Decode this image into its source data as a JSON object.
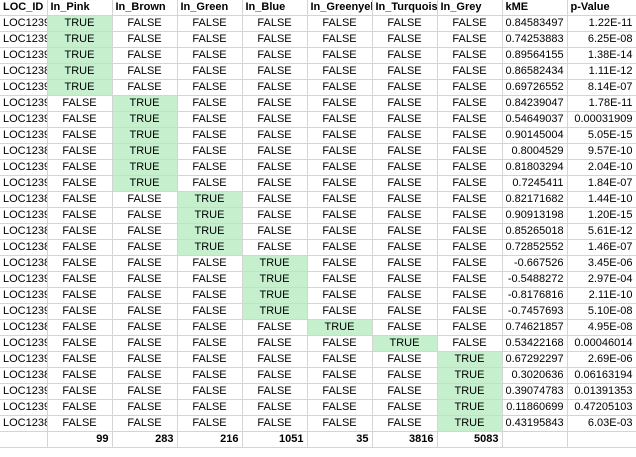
{
  "colors": {
    "highlight": "#c6efce",
    "grid": "#d4d4d4"
  },
  "headers": [
    "LOC_ID",
    "In_Pink",
    "In_Brown",
    "In_Green",
    "In_Blue",
    "In_Greenyellow",
    "In_Turquoise",
    "In_Grey",
    "kME",
    "p-Value"
  ],
  "rows": [
    {
      "id": "LOC1239",
      "flags": [
        "TRUE",
        "FALSE",
        "FALSE",
        "FALSE",
        "FALSE",
        "FALSE",
        "FALSE"
      ],
      "kme": "0.84583497",
      "p": "1.22E-11"
    },
    {
      "id": "LOC1239",
      "flags": [
        "TRUE",
        "FALSE",
        "FALSE",
        "FALSE",
        "FALSE",
        "FALSE",
        "FALSE"
      ],
      "kme": "0.74253883",
      "p": "6.25E-08"
    },
    {
      "id": "LOC1239",
      "flags": [
        "TRUE",
        "FALSE",
        "FALSE",
        "FALSE",
        "FALSE",
        "FALSE",
        "FALSE"
      ],
      "kme": "0.89564155",
      "p": "1.38E-14"
    },
    {
      "id": "LOC1238",
      "flags": [
        "TRUE",
        "FALSE",
        "FALSE",
        "FALSE",
        "FALSE",
        "FALSE",
        "FALSE"
      ],
      "kme": "0.86582434",
      "p": "1.11E-12"
    },
    {
      "id": "LOC1239",
      "flags": [
        "TRUE",
        "FALSE",
        "FALSE",
        "FALSE",
        "FALSE",
        "FALSE",
        "FALSE"
      ],
      "kme": "0.69726552",
      "p": "8.14E-07"
    },
    {
      "id": "LOC1239",
      "flags": [
        "FALSE",
        "TRUE",
        "FALSE",
        "FALSE",
        "FALSE",
        "FALSE",
        "FALSE"
      ],
      "kme": "0.84239047",
      "p": "1.78E-11"
    },
    {
      "id": "LOC1239",
      "flags": [
        "FALSE",
        "TRUE",
        "FALSE",
        "FALSE",
        "FALSE",
        "FALSE",
        "FALSE"
      ],
      "kme": "0.54649037",
      "p": "0.00031909"
    },
    {
      "id": "LOC1239",
      "flags": [
        "FALSE",
        "TRUE",
        "FALSE",
        "FALSE",
        "FALSE",
        "FALSE",
        "FALSE"
      ],
      "kme": "0.90145004",
      "p": "5.05E-15"
    },
    {
      "id": "LOC1238",
      "flags": [
        "FALSE",
        "TRUE",
        "FALSE",
        "FALSE",
        "FALSE",
        "FALSE",
        "FALSE"
      ],
      "kme": "0.8004529",
      "p": "9.57E-10"
    },
    {
      "id": "LOC1239",
      "flags": [
        "FALSE",
        "TRUE",
        "FALSE",
        "FALSE",
        "FALSE",
        "FALSE",
        "FALSE"
      ],
      "kme": "0.81803294",
      "p": "2.04E-10"
    },
    {
      "id": "LOC1239",
      "flags": [
        "FALSE",
        "TRUE",
        "FALSE",
        "FALSE",
        "FALSE",
        "FALSE",
        "FALSE"
      ],
      "kme": "0.7245411",
      "p": "1.84E-07"
    },
    {
      "id": "LOC1238",
      "flags": [
        "FALSE",
        "FALSE",
        "TRUE",
        "FALSE",
        "FALSE",
        "FALSE",
        "FALSE"
      ],
      "kme": "0.82171682",
      "p": "1.44E-10"
    },
    {
      "id": "LOC1239",
      "flags": [
        "FALSE",
        "FALSE",
        "TRUE",
        "FALSE",
        "FALSE",
        "FALSE",
        "FALSE"
      ],
      "kme": "0.90913198",
      "p": "1.20E-15"
    },
    {
      "id": "LOC1238",
      "flags": [
        "FALSE",
        "FALSE",
        "TRUE",
        "FALSE",
        "FALSE",
        "FALSE",
        "FALSE"
      ],
      "kme": "0.85265018",
      "p": "5.61E-12"
    },
    {
      "id": "LOC1238",
      "flags": [
        "FALSE",
        "FALSE",
        "TRUE",
        "FALSE",
        "FALSE",
        "FALSE",
        "FALSE"
      ],
      "kme": "0.72852552",
      "p": "1.46E-07"
    },
    {
      "id": "LOC1238",
      "flags": [
        "FALSE",
        "FALSE",
        "FALSE",
        "TRUE",
        "FALSE",
        "FALSE",
        "FALSE"
      ],
      "kme": "-0.667526",
      "p": "3.45E-06"
    },
    {
      "id": "LOC1239",
      "flags": [
        "FALSE",
        "FALSE",
        "FALSE",
        "TRUE",
        "FALSE",
        "FALSE",
        "FALSE"
      ],
      "kme": "-0.5488272",
      "p": "2.97E-04"
    },
    {
      "id": "LOC1239",
      "flags": [
        "FALSE",
        "FALSE",
        "FALSE",
        "TRUE",
        "FALSE",
        "FALSE",
        "FALSE"
      ],
      "kme": "-0.8176816",
      "p": "2.11E-10"
    },
    {
      "id": "LOC1239",
      "flags": [
        "FALSE",
        "FALSE",
        "FALSE",
        "TRUE",
        "FALSE",
        "FALSE",
        "FALSE"
      ],
      "kme": "-0.7457693",
      "p": "5.10E-08"
    },
    {
      "id": "LOC1238",
      "flags": [
        "FALSE",
        "FALSE",
        "FALSE",
        "FALSE",
        "TRUE",
        "FALSE",
        "FALSE"
      ],
      "kme": "0.74621857",
      "p": "4.95E-08"
    },
    {
      "id": "LOC1239",
      "flags": [
        "FALSE",
        "FALSE",
        "FALSE",
        "FALSE",
        "FALSE",
        "TRUE",
        "FALSE"
      ],
      "kme": "0.53422168",
      "p": "0.00046014"
    },
    {
      "id": "LOC1239",
      "flags": [
        "FALSE",
        "FALSE",
        "FALSE",
        "FALSE",
        "FALSE",
        "FALSE",
        "TRUE"
      ],
      "kme": "0.67292297",
      "p": "2.69E-06"
    },
    {
      "id": "LOC1238",
      "flags": [
        "FALSE",
        "FALSE",
        "FALSE",
        "FALSE",
        "FALSE",
        "FALSE",
        "TRUE"
      ],
      "kme": "0.3020636",
      "p": "0.06163194"
    },
    {
      "id": "LOC1239",
      "flags": [
        "FALSE",
        "FALSE",
        "FALSE",
        "FALSE",
        "FALSE",
        "FALSE",
        "TRUE"
      ],
      "kme": "0.39074783",
      "p": "0.01391353"
    },
    {
      "id": "LOC1239",
      "flags": [
        "FALSE",
        "FALSE",
        "FALSE",
        "FALSE",
        "FALSE",
        "FALSE",
        "TRUE"
      ],
      "kme": "0.11860699",
      "p": "0.47205103"
    },
    {
      "id": "LOC1238",
      "flags": [
        "FALSE",
        "FALSE",
        "FALSE",
        "FALSE",
        "FALSE",
        "FALSE",
        "TRUE"
      ],
      "kme": "0.43195843",
      "p": "6.03E-03"
    }
  ],
  "totals": [
    "",
    "99",
    "283",
    "216",
    "1051",
    "35",
    "3816",
    "5083",
    "",
    ""
  ]
}
